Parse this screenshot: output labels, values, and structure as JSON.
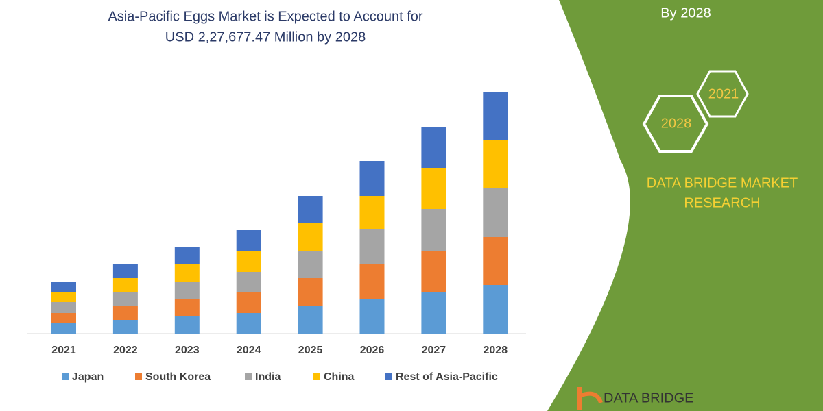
{
  "chart_data": {
    "type": "stacked_bar",
    "title_lines": [
      "Asia-Pacific Eggs Market is Expected to Account for",
      "USD 2,27,677.47 Million by 2028"
    ],
    "categories": [
      "2021",
      "2022",
      "2023",
      "2024",
      "2025",
      "2026",
      "2027",
      "2028"
    ],
    "series": [
      {
        "name": "Japan",
        "color": "#5b9bd5",
        "values": [
          15,
          20,
          26,
          30,
          41,
          51,
          61,
          71
        ]
      },
      {
        "name": "South Korea",
        "color": "#ed7d31",
        "values": [
          15,
          21,
          25,
          30,
          40,
          50,
          60,
          70
        ]
      },
      {
        "name": "India",
        "color": "#a5a5a5",
        "values": [
          16,
          20,
          25,
          30,
          40,
          51,
          61,
          71
        ]
      },
      {
        "name": "China",
        "color": "#ffc000",
        "values": [
          15,
          20,
          25,
          30,
          40,
          49,
          60,
          70
        ]
      },
      {
        "name": "Rest of Asia-Pacific",
        "color": "#4472c4",
        "values": [
          15,
          20,
          25,
          31,
          40,
          51,
          60,
          70
        ]
      }
    ]
  },
  "branding": {
    "header_fragment": "By 2028",
    "hexagons": [
      "2021",
      "2028"
    ],
    "company_lines": [
      "DATA BRIDGE MARKET",
      "RESEARCH"
    ],
    "logo_text": "DATA BRIDGE"
  }
}
